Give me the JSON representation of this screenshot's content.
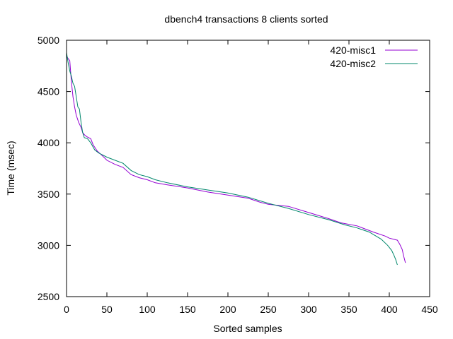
{
  "chart_data": {
    "type": "line",
    "title": "dbench4 transactions 8 clients sorted",
    "xlabel": "Sorted samples",
    "ylabel": "Time (msec)",
    "xlim": [
      0,
      450
    ],
    "ylim": [
      2500,
      5000
    ],
    "xticks": [
      0,
      50,
      100,
      150,
      200,
      250,
      300,
      350,
      400,
      450
    ],
    "yticks": [
      2500,
      3000,
      3500,
      4000,
      4500,
      5000
    ],
    "grid": false,
    "legend_position": "top-right",
    "series": [
      {
        "name": "420-misc1",
        "color": "#9400d3",
        "points": [
          [
            0,
            4850
          ],
          [
            2,
            4820
          ],
          [
            4,
            4800
          ],
          [
            5,
            4700
          ],
          [
            6,
            4600
          ],
          [
            8,
            4450
          ],
          [
            10,
            4350
          ],
          [
            12,
            4270
          ],
          [
            15,
            4200
          ],
          [
            18,
            4150
          ],
          [
            20,
            4100
          ],
          [
            22,
            4080
          ],
          [
            25,
            4060
          ],
          [
            30,
            4040
          ],
          [
            33,
            3980
          ],
          [
            38,
            3920
          ],
          [
            45,
            3870
          ],
          [
            50,
            3830
          ],
          [
            60,
            3790
          ],
          [
            70,
            3760
          ],
          [
            80,
            3690
          ],
          [
            90,
            3660
          ],
          [
            100,
            3640
          ],
          [
            110,
            3610
          ],
          [
            125,
            3590
          ],
          [
            150,
            3560
          ],
          [
            175,
            3520
          ],
          [
            200,
            3490
          ],
          [
            225,
            3460
          ],
          [
            240,
            3420
          ],
          [
            250,
            3400
          ],
          [
            275,
            3380
          ],
          [
            300,
            3320
          ],
          [
            325,
            3260
          ],
          [
            340,
            3220
          ],
          [
            360,
            3190
          ],
          [
            380,
            3130
          ],
          [
            395,
            3090
          ],
          [
            400,
            3070
          ],
          [
            410,
            3050
          ],
          [
            413,
            3010
          ],
          [
            416,
            2960
          ],
          [
            418,
            2890
          ],
          [
            420,
            2830
          ]
        ]
      },
      {
        "name": "420-misc2",
        "color": "#00876b",
        "points": [
          [
            0,
            4880
          ],
          [
            2,
            4780
          ],
          [
            4,
            4700
          ],
          [
            6,
            4650
          ],
          [
            8,
            4580
          ],
          [
            10,
            4550
          ],
          [
            12,
            4450
          ],
          [
            14,
            4350
          ],
          [
            16,
            4330
          ],
          [
            18,
            4200
          ],
          [
            20,
            4100
          ],
          [
            22,
            4050
          ],
          [
            26,
            4040
          ],
          [
            30,
            4000
          ],
          [
            35,
            3930
          ],
          [
            40,
            3900
          ],
          [
            50,
            3860
          ],
          [
            60,
            3830
          ],
          [
            70,
            3800
          ],
          [
            80,
            3730
          ],
          [
            90,
            3690
          ],
          [
            100,
            3670
          ],
          [
            110,
            3640
          ],
          [
            125,
            3610
          ],
          [
            150,
            3570
          ],
          [
            175,
            3540
          ],
          [
            200,
            3510
          ],
          [
            225,
            3470
          ],
          [
            250,
            3410
          ],
          [
            275,
            3360
          ],
          [
            300,
            3300
          ],
          [
            325,
            3250
          ],
          [
            345,
            3200
          ],
          [
            360,
            3170
          ],
          [
            375,
            3130
          ],
          [
            390,
            3060
          ],
          [
            398,
            3000
          ],
          [
            403,
            2950
          ],
          [
            406,
            2900
          ],
          [
            408,
            2860
          ],
          [
            410,
            2810
          ]
        ]
      }
    ]
  }
}
